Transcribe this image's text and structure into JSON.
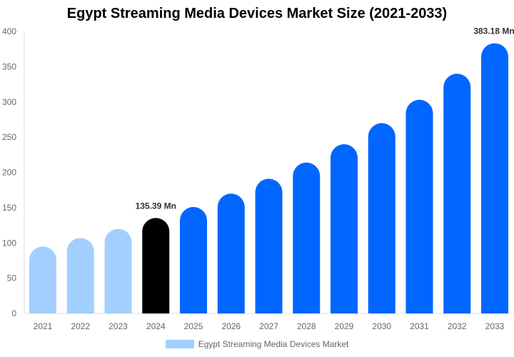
{
  "chart_data": {
    "type": "bar",
    "title": "Egypt Streaming Media Devices Market Size (2021-2033)",
    "categories": [
      "2021",
      "2022",
      "2023",
      "2024",
      "2025",
      "2026",
      "2027",
      "2028",
      "2029",
      "2030",
      "2031",
      "2032",
      "2033"
    ],
    "series": [
      {
        "name": "Egypt Streaming Media Devices Market",
        "values": [
          95,
          107,
          120,
          135.39,
          151,
          170,
          191,
          214,
          240,
          270,
          303,
          340,
          383.18
        ]
      }
    ],
    "data_labels": [
      {
        "category": "2024",
        "text": "135.39 Mn"
      },
      {
        "category": "2033",
        "text": "383.18 Mn"
      }
    ],
    "ylim": [
      0,
      400
    ],
    "yticks": [
      0,
      50,
      100,
      150,
      200,
      250,
      300,
      350,
      400
    ],
    "grid": false,
    "legend_position": "bottom",
    "colors": {
      "historic": "#a3cfff",
      "current": "#000000",
      "forecast": "#0066ff"
    }
  }
}
